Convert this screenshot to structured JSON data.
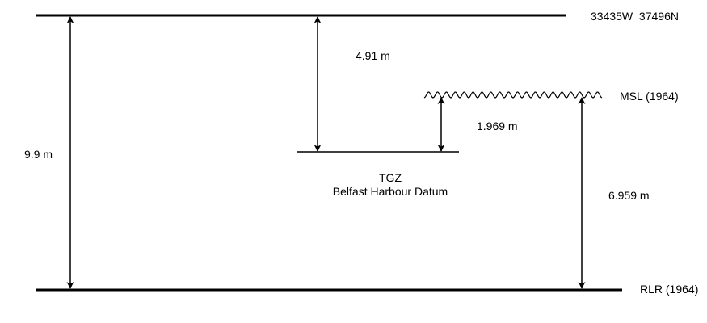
{
  "labels": {
    "coords": "33435W  37496N",
    "msl": "MSL (1964)",
    "rlr": "RLR (1964)",
    "tgz": "TGZ",
    "datum": "Belfast Harbour Datum",
    "dist_top_tgz": "4.91 m",
    "dist_tgz_msl": "1.969 m",
    "dist_msl_rlr": "6.959 m",
    "dist_total": "9.9 m"
  },
  "colors": {
    "ink": "#000000",
    "background": "#ffffff"
  }
}
